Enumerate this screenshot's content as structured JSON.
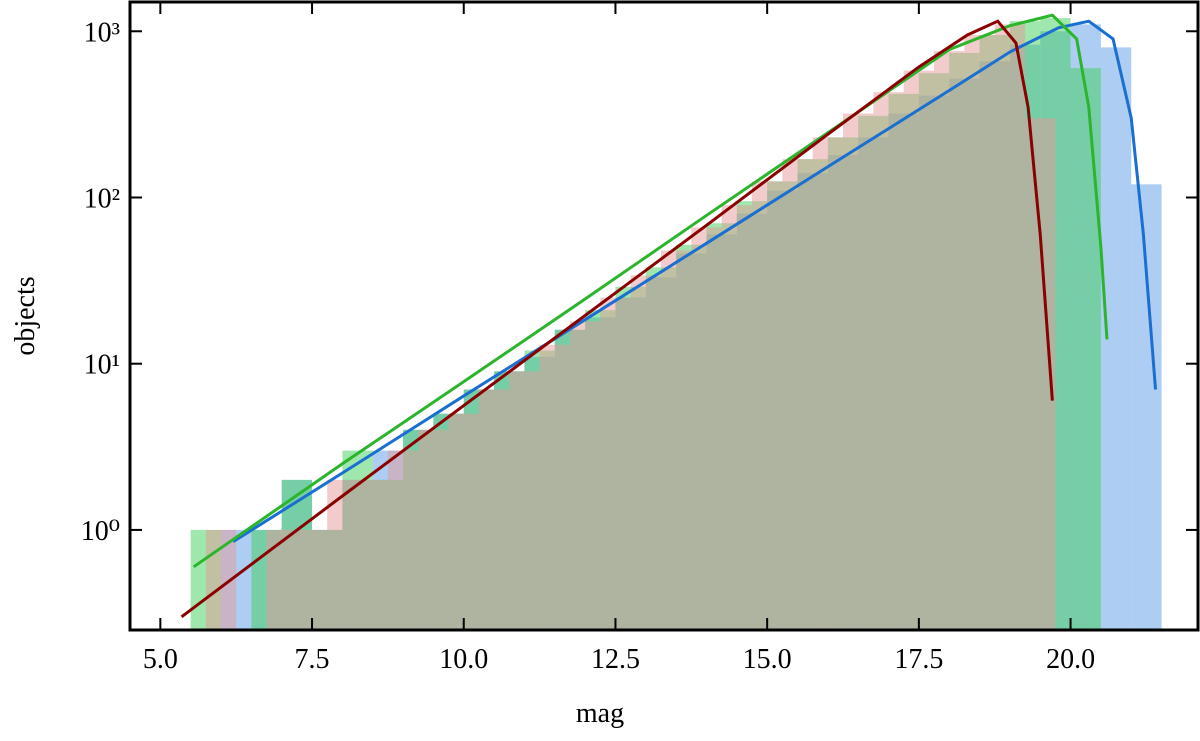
{
  "chart_data": {
    "type": "histogram",
    "xlabel": "mag",
    "ylabel": "objects",
    "yscale": "log",
    "xlim": [
      4.5,
      22.1
    ],
    "ylim": [
      0.25,
      1500.0
    ],
    "xticks": [
      {
        "value": 5,
        "label": "5.0"
      },
      7.5,
      {
        "value": 10,
        "label": "10.0"
      },
      12.5,
      {
        "value": 15,
        "label": "15.0"
      },
      17.5,
      {
        "value": 20,
        "label": "20.0"
      }
    ],
    "yticks": [
      {
        "value": 1,
        "label": "10⁰"
      },
      {
        "value": 10,
        "label": "10¹"
      },
      {
        "value": 100,
        "label": "10²"
      },
      {
        "value": 1000,
        "label": "10³"
      }
    ],
    "series": [
      {
        "color": "#5b9be6",
        "bins": [
          6.0,
          6.5,
          7.0,
          7.5,
          8.0,
          8.5,
          9.0,
          9.5,
          10.0,
          10.5,
          11.0,
          11.5,
          12.0,
          12.5,
          13.0,
          13.5,
          14.0,
          14.5,
          15.0,
          15.5,
          16.0,
          16.5,
          17.0,
          17.5,
          18.0,
          18.5,
          19.0,
          19.5,
          20.0,
          20.5,
          21.0,
          21.5
        ],
        "values": [
          1,
          1,
          2,
          1,
          2,
          3,
          4,
          5,
          7,
          9,
          11,
          16,
          19,
          25,
          33,
          46,
          60,
          80,
          110,
          140,
          180,
          230,
          320,
          410,
          520,
          660,
          830,
          1000,
          1100,
          800,
          120
        ]
      },
      {
        "color": "#3fcf5a",
        "bins": [
          5.5,
          6.0,
          6.5,
          7.0,
          7.5,
          8.0,
          8.5,
          9.0,
          9.5,
          10.0,
          10.5,
          11.0,
          11.5,
          12.0,
          12.5,
          13.0,
          13.5,
          14.0,
          14.5,
          15.0,
          15.5,
          16.0,
          16.5,
          17.0,
          17.5,
          18.0,
          18.5,
          19.0,
          19.5,
          20.0,
          20.5
        ],
        "values": [
          1,
          0,
          1,
          2,
          1,
          3,
          2,
          4,
          5,
          7,
          9,
          12,
          16,
          21,
          29,
          38,
          52,
          70,
          95,
          125,
          170,
          230,
          310,
          420,
          560,
          740,
          950,
          1150,
          1200,
          600
        ]
      },
      {
        "color": "#e59a9a",
        "bins": [
          5.75,
          6.25,
          6.75,
          7.25,
          7.75,
          8.25,
          8.75,
          9.25,
          9.75,
          10.25,
          10.75,
          11.25,
          11.75,
          12.25,
          12.75,
          13.25,
          13.75,
          14.25,
          14.75,
          15.25,
          15.75,
          16.25,
          16.75,
          17.25,
          17.75,
          18.25,
          18.75,
          19.25,
          19.75
        ],
        "values": [
          1,
          0,
          1,
          1,
          2,
          2,
          3,
          4,
          5,
          7,
          9,
          13,
          18,
          25,
          34,
          48,
          66,
          90,
          125,
          170,
          230,
          320,
          430,
          580,
          760,
          950,
          1100,
          300
        ]
      }
    ],
    "lines": [
      {
        "color": "#1a6fd0",
        "x": [
          6.2,
          8,
          10,
          12,
          14,
          16,
          18,
          19,
          19.8,
          20.3,
          20.7,
          21.0,
          21.2,
          21.4
        ],
        "values": [
          0.85,
          2.2,
          6.4,
          18.4,
          53,
          153,
          440,
          750,
          1050,
          1150,
          900,
          300,
          60,
          7
        ]
      },
      {
        "color": "#2cb52c",
        "x": [
          5.55,
          8,
          10,
          12,
          14,
          16,
          18,
          19,
          19.7,
          20.1,
          20.3,
          20.5,
          20.6
        ],
        "values": [
          0.6,
          2.5,
          7.8,
          24.5,
          78,
          245,
          776,
          1080,
          1250,
          900,
          350,
          50,
          14
        ]
      },
      {
        "color": "#8b0000",
        "x": [
          5.35,
          8,
          10,
          12,
          14,
          16,
          17.5,
          18.3,
          18.8,
          19.1,
          19.3,
          19.5,
          19.7
        ],
        "values": [
          0.3,
          1.6,
          5.6,
          19.5,
          68,
          240,
          610,
          950,
          1150,
          850,
          350,
          60,
          6
        ]
      }
    ]
  }
}
